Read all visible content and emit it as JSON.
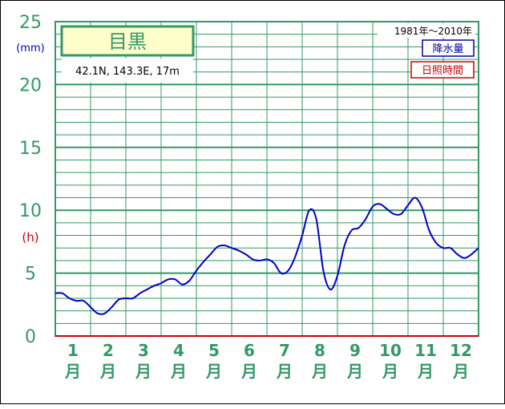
{
  "chart_data": {
    "type": "line",
    "title": "目黒",
    "location": "42.1N,  143.3E,  17m",
    "period": "1981年～2010年",
    "legend": [
      {
        "label": "降水量",
        "color": "#0000aa"
      },
      {
        "label": "日照時間",
        "color": "#cc0000"
      }
    ],
    "unit_mm": "(mm)",
    "unit_h": "(h)",
    "y_ticks": [
      "0",
      "5",
      "10",
      "15",
      "20",
      "25"
    ],
    "ylim": [
      0,
      25
    ],
    "grid": true,
    "months": [
      {
        "num": "1",
        "label": "月"
      },
      {
        "num": "2",
        "label": "月"
      },
      {
        "num": "3",
        "label": "月"
      },
      {
        "num": "4",
        "label": "月"
      },
      {
        "num": "5",
        "label": "月"
      },
      {
        "num": "6",
        "label": "月"
      },
      {
        "num": "7",
        "label": "月"
      },
      {
        "num": "8",
        "label": "月"
      },
      {
        "num": "9",
        "label": "月"
      },
      {
        "num": "10",
        "label": "月"
      },
      {
        "num": "11",
        "label": "月"
      },
      {
        "num": "12",
        "label": "月"
      }
    ],
    "series": [
      {
        "color": "#0000cc",
        "x": [
          0.5,
          0.7,
          0.9,
          1.1,
          1.3,
          1.5,
          1.7,
          1.9,
          2.1,
          2.3,
          2.5,
          2.7,
          2.9,
          3.1,
          3.3,
          3.5,
          3.7,
          3.9,
          4.1,
          4.3,
          4.5,
          4.7,
          4.9,
          5.1,
          5.3,
          5.5,
          5.7,
          5.9,
          6.1,
          6.3,
          6.5,
          6.7,
          6.9,
          7.1,
          7.3,
          7.5,
          7.7,
          7.9,
          8.1,
          8.3,
          8.5,
          8.7,
          8.9,
          9.1,
          9.3,
          9.5,
          9.7,
          9.9,
          10.1,
          10.3,
          10.5,
          10.7,
          10.9,
          11.1,
          11.3,
          11.5,
          11.7,
          11.9,
          12.1,
          12.3,
          12.5
        ],
        "values": [
          3.4,
          3.4,
          3.0,
          2.8,
          2.8,
          2.3,
          1.8,
          1.8,
          2.3,
          2.9,
          3.0,
          3.0,
          3.4,
          3.7,
          4.0,
          4.2,
          4.5,
          4.5,
          4.1,
          4.4,
          5.2,
          5.9,
          6.5,
          7.1,
          7.2,
          7.0,
          6.8,
          6.5,
          6.1,
          6.0,
          6.1,
          5.8,
          5.0,
          5.2,
          6.3,
          8.0,
          10.0,
          9.3,
          5.2,
          3.7,
          4.8,
          7.2,
          8.4,
          8.6,
          9.3,
          10.3,
          10.5,
          10.1,
          9.7,
          9.7,
          10.4,
          11.0,
          10.2,
          8.4,
          7.4,
          7.0,
          7.0,
          6.5,
          6.2,
          6.5,
          7.0
        ]
      }
    ]
  }
}
